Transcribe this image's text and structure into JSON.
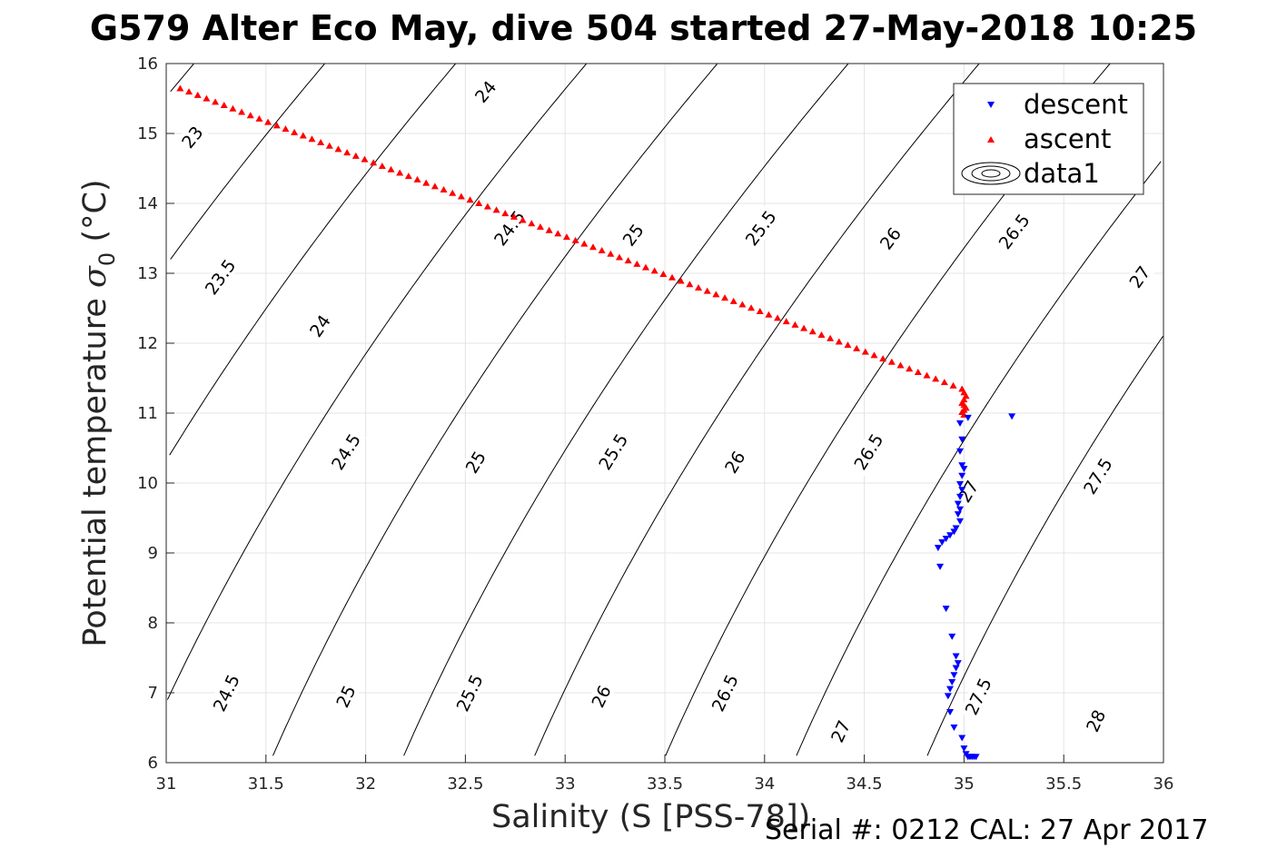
{
  "title": "G579 Alter Eco May, dive 504 started 27-May-2018 10:25",
  "footer": "Serial #: 0212  CAL: 27 Apr 2017",
  "chart_data": {
    "type": "scatter",
    "xlabel": "Salinity (S [PSS-78])",
    "ylabel_main": "Potential temperature ",
    "ylabel_sigma": "σ",
    "ylabel_sub": "0",
    "ylabel_unit": " (°C)",
    "xlim": [
      31,
      36
    ],
    "ylim": [
      6,
      16
    ],
    "xticks": [
      31,
      31.5,
      32,
      32.5,
      33,
      33.5,
      34,
      34.5,
      35,
      35.5,
      36
    ],
    "yticks": [
      6,
      7,
      8,
      9,
      10,
      11,
      12,
      13,
      14,
      15,
      16
    ],
    "grid": true,
    "legend": {
      "position": "top-right",
      "entries": [
        "descent",
        "ascent",
        "data1"
      ]
    },
    "series": [
      {
        "name": "descent",
        "color": "#0000ff",
        "marker": "triangle-down",
        "points": [
          [
            35.24,
            10.95
          ],
          [
            35.02,
            10.93
          ],
          [
            34.98,
            10.85
          ],
          [
            34.99,
            10.62
          ],
          [
            34.98,
            10.45
          ],
          [
            34.99,
            10.25
          ],
          [
            35.0,
            10.2
          ],
          [
            34.99,
            10.1
          ],
          [
            34.98,
            9.98
          ],
          [
            34.99,
            9.9
          ],
          [
            34.98,
            9.8
          ],
          [
            34.97,
            9.7
          ],
          [
            34.98,
            9.62
          ],
          [
            34.97,
            9.55
          ],
          [
            34.98,
            9.45
          ],
          [
            34.96,
            9.35
          ],
          [
            34.95,
            9.3
          ],
          [
            34.93,
            9.25
          ],
          [
            34.91,
            9.2
          ],
          [
            34.89,
            9.15
          ],
          [
            34.87,
            9.07
          ],
          [
            34.88,
            8.8
          ],
          [
            34.91,
            8.2
          ],
          [
            34.94,
            7.8
          ],
          [
            34.96,
            7.52
          ],
          [
            34.97,
            7.42
          ],
          [
            34.96,
            7.35
          ],
          [
            34.95,
            7.25
          ],
          [
            34.94,
            7.15
          ],
          [
            34.93,
            7.05
          ],
          [
            34.92,
            6.95
          ],
          [
            34.93,
            6.72
          ],
          [
            34.95,
            6.5
          ],
          [
            34.99,
            6.35
          ],
          [
            35.0,
            6.2
          ],
          [
            35.01,
            6.12
          ],
          [
            35.02,
            6.08
          ],
          [
            35.03,
            6.08
          ],
          [
            35.04,
            6.08
          ],
          [
            35.05,
            6.08
          ],
          [
            35.06,
            6.08
          ]
        ]
      },
      {
        "name": "ascent",
        "color": "#ff0000",
        "marker": "triangle-up",
        "points_line": {
          "from": [
            31.07,
            15.65
          ],
          "to": [
            34.99,
            11.35
          ],
          "count": 90
        },
        "points": [
          [
            35.0,
            11.3
          ],
          [
            35.01,
            11.25
          ],
          [
            35.0,
            11.2
          ],
          [
            34.99,
            11.15
          ],
          [
            35.0,
            11.12
          ],
          [
            35.01,
            11.08
          ],
          [
            35.0,
            11.05
          ],
          [
            34.99,
            11.02
          ],
          [
            35.0,
            10.98
          ]
        ]
      }
    ],
    "contours": {
      "color": "#000000",
      "density_levels": [
        23,
        23.5,
        24,
        24.5,
        25,
        25.5,
        26,
        26.5,
        27,
        27.5,
        28
      ],
      "labels": [
        {
          "text": "23",
          "at": [
            31.13,
            14.95
          ]
        },
        {
          "text": "23.5",
          "at": [
            31.27,
            12.95
          ]
        },
        {
          "text": "24",
          "at": [
            32.6,
            15.6
          ]
        },
        {
          "text": "24",
          "at": [
            31.77,
            12.25
          ]
        },
        {
          "text": "24.5",
          "at": [
            32.72,
            13.65
          ]
        },
        {
          "text": "24.5",
          "at": [
            31.9,
            10.45
          ]
        },
        {
          "text": "24.5",
          "at": [
            31.3,
            7.0
          ]
        },
        {
          "text": "25",
          "at": [
            33.34,
            13.55
          ]
        },
        {
          "text": "25",
          "at": [
            32.55,
            10.3
          ]
        },
        {
          "text": "25",
          "at": [
            31.9,
            6.95
          ]
        },
        {
          "text": "25.5",
          "at": [
            33.98,
            13.65
          ]
        },
        {
          "text": "25.5",
          "at": [
            33.24,
            10.45
          ]
        },
        {
          "text": "25.5",
          "at": [
            32.52,
            7.0
          ]
        },
        {
          "text": "26",
          "at": [
            34.63,
            13.5
          ]
        },
        {
          "text": "26",
          "at": [
            33.85,
            10.3
          ]
        },
        {
          "text": "26",
          "at": [
            33.18,
            6.95
          ]
        },
        {
          "text": "26.5",
          "at": [
            35.25,
            13.6
          ]
        },
        {
          "text": "26.5",
          "at": [
            34.52,
            10.45
          ]
        },
        {
          "text": "26.5",
          "at": [
            33.8,
            7.0
          ]
        },
        {
          "text": "27",
          "at": [
            35.02,
            9.88
          ]
        },
        {
          "text": "27",
          "at": [
            35.88,
            12.95
          ]
        },
        {
          "text": "27",
          "at": [
            34.38,
            6.45
          ]
        },
        {
          "text": "27.5",
          "at": [
            35.07,
            6.95
          ]
        },
        {
          "text": "27.5",
          "at": [
            35.67,
            10.1
          ]
        },
        {
          "text": "28",
          "at": [
            35.66,
            6.6
          ]
        }
      ]
    }
  }
}
